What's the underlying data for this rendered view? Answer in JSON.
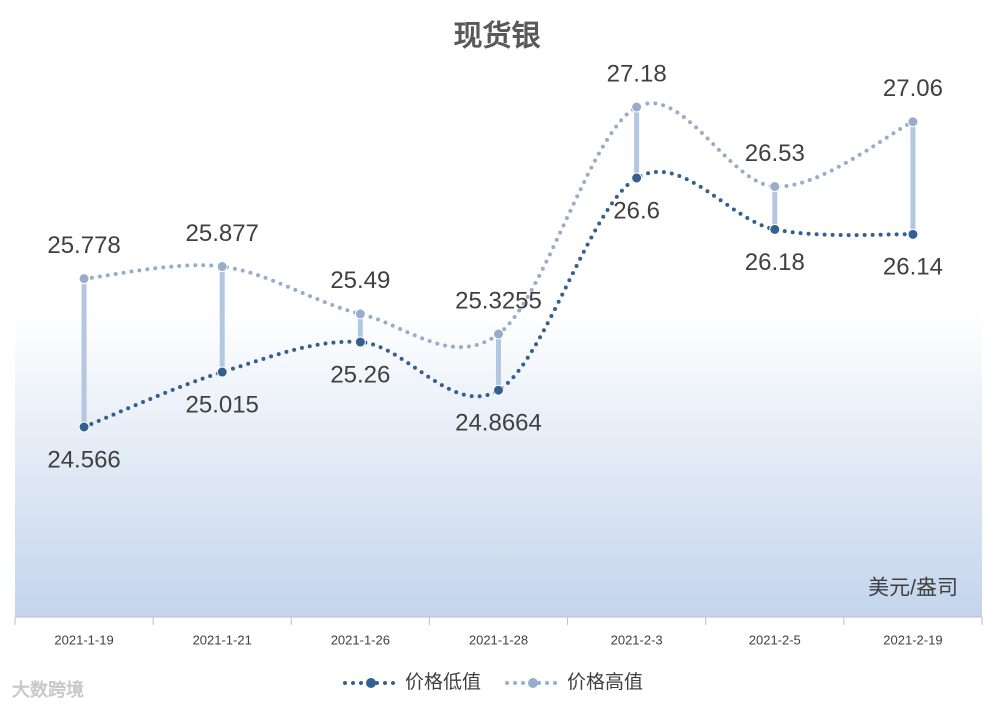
{
  "chart_data": {
    "type": "line",
    "title": "现货银",
    "unit_label": "美元/盎司",
    "categories": [
      "2021-1-19",
      "2021-1-21",
      "2021-1-26",
      "2021-1-28",
      "2021-2-3",
      "2021-2-5",
      "2021-2-19"
    ],
    "series": [
      {
        "name": "价格低值",
        "color": "#34608f",
        "values": [
          24.566,
          25.015,
          25.26,
          24.8664,
          26.6,
          26.18,
          26.14
        ]
      },
      {
        "name": "价格高值",
        "color": "#97adcb",
        "values": [
          25.778,
          25.877,
          25.49,
          25.3255,
          27.18,
          26.53,
          27.06
        ]
      }
    ],
    "high_low_lines": true,
    "smooth": true,
    "legend": "bottom"
  },
  "watermark": "大数跨境"
}
